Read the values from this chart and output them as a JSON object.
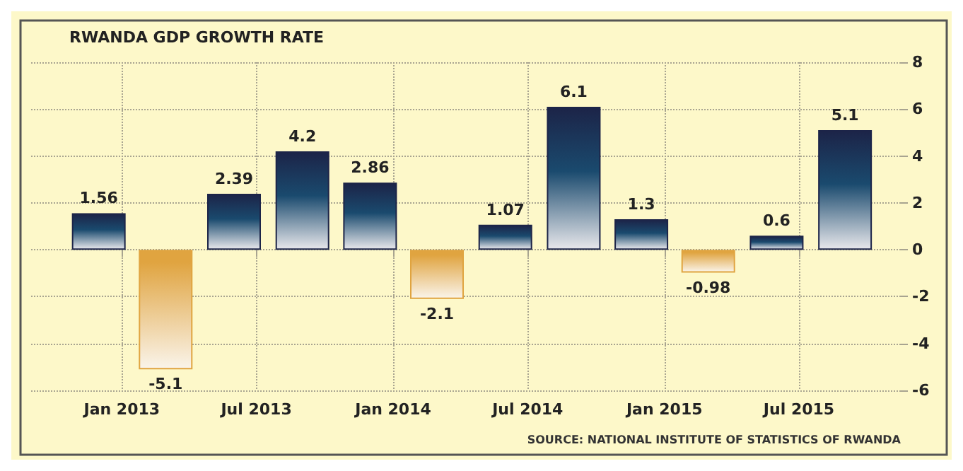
{
  "chart_data": {
    "type": "bar",
    "title": "RWANDA GDP GROWTH RATE",
    "annotations": [
      "SOURCE: NATIONAL INSTITUTE OF STATISTICS OF RWANDA"
    ],
    "x": [
      "2012-12",
      "2013-03",
      "2013-06",
      "2013-09",
      "2013-12",
      "2014-03",
      "2014-06",
      "2014-09",
      "2014-12",
      "2015-03",
      "2015-06",
      "2015-09"
    ],
    "values": [
      1.56,
      -5.1,
      2.39,
      4.2,
      2.86,
      -2.1,
      1.07,
      6.1,
      1.3,
      -0.98,
      0.6,
      5.1
    ],
    "colors": [
      "#1c2448",
      "#e0a440",
      "#1c2448",
      "#1c2448",
      "#1c2448",
      "#e0a440",
      "#1c2448",
      "#1c2448",
      "#1c2448",
      "#e0a440",
      "#1c2448",
      "#1c2448"
    ],
    "data_labels": true,
    "xlim": [
      "2012-09",
      "2015-11-15"
    ],
    "xticks": [
      {
        "value": "2013-01",
        "label": "Jan 2013"
      },
      {
        "value": "2013-07",
        "label": "Jul 2013"
      },
      {
        "value": "2014-01",
        "label": "Jan 2014"
      },
      {
        "value": "2014-07",
        "label": "Jul 2014"
      },
      {
        "value": "2015-01",
        "label": "Jan 2015"
      },
      {
        "value": "2015-07",
        "label": "Jul 2015"
      }
    ],
    "ylim": [
      -6,
      8
    ],
    "yticks": [
      -6,
      -4,
      -2,
      0,
      2,
      4,
      6,
      8
    ],
    "grid": true
  }
}
